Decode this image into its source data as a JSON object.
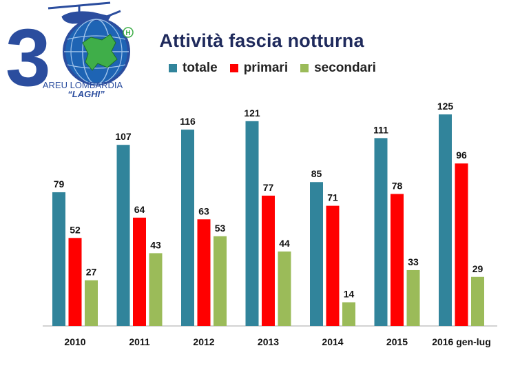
{
  "logo": {
    "digits": "30",
    "line1": "AREU LOMBARDIA",
    "line2": "“LAGHI”",
    "badge": "H"
  },
  "legend_items": [
    {
      "label": "totale",
      "color": "#31849b"
    },
    {
      "label": "primari",
      "color": "#ff0000"
    },
    {
      "label": "secondari",
      "color": "#9bbb59"
    }
  ],
  "chart_data": {
    "type": "bar",
    "title": "Attività fascia notturna",
    "categories": [
      "2010",
      "2011",
      "2012",
      "2013",
      "2014",
      "2015",
      "2016 gen-lug"
    ],
    "series": [
      {
        "name": "totale",
        "color": "#31849b",
        "values": [
          79,
          107,
          116,
          121,
          85,
          111,
          125
        ]
      },
      {
        "name": "primari",
        "color": "#ff0000",
        "values": [
          52,
          64,
          63,
          77,
          71,
          78,
          96
        ]
      },
      {
        "name": "secondari",
        "color": "#9bbb59",
        "values": [
          27,
          43,
          53,
          44,
          14,
          33,
          29
        ]
      }
    ],
    "xlabel": "",
    "ylabel": "",
    "ylim": [
      0,
      125
    ],
    "grid": false,
    "legend": "top"
  }
}
